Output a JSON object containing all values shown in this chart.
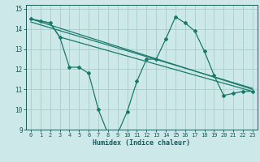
{
  "xlabel": "Humidex (Indice chaleur)",
  "ylabel": "",
  "bg_color": "#cce8e8",
  "grid_color": "#aacccc",
  "line_color": "#1a7a6a",
  "tick_color": "#1a5a5a",
  "xlim": [
    -0.5,
    23.5
  ],
  "ylim": [
    9,
    15.2
  ],
  "yticks": [
    9,
    10,
    11,
    12,
    13,
    14,
    15
  ],
  "xticks": [
    0,
    1,
    2,
    3,
    4,
    5,
    6,
    7,
    8,
    9,
    10,
    11,
    12,
    13,
    14,
    15,
    16,
    17,
    18,
    19,
    20,
    21,
    22,
    23
  ],
  "lines": [
    {
      "x": [
        0,
        1,
        2,
        3,
        4,
        5,
        6,
        7,
        8,
        9,
        10,
        11,
        12,
        13,
        14,
        15,
        16,
        17,
        18,
        19,
        20,
        21,
        22,
        23
      ],
      "y": [
        14.5,
        14.4,
        14.3,
        13.6,
        12.1,
        12.1,
        11.8,
        10.0,
        8.8,
        8.8,
        9.9,
        11.4,
        12.5,
        12.5,
        13.5,
        14.6,
        14.3,
        13.9,
        12.9,
        11.7,
        10.7,
        10.8,
        10.9,
        10.9
      ],
      "has_markers": true
    },
    {
      "x": [
        0,
        1,
        2,
        3,
        23
      ],
      "y": [
        14.5,
        14.4,
        14.3,
        13.6,
        10.9
      ],
      "has_markers": false
    },
    {
      "x": [
        0,
        23
      ],
      "y": [
        14.5,
        11.0
      ],
      "has_markers": false
    },
    {
      "x": [
        0,
        23
      ],
      "y": [
        14.35,
        11.05
      ],
      "has_markers": false
    }
  ]
}
